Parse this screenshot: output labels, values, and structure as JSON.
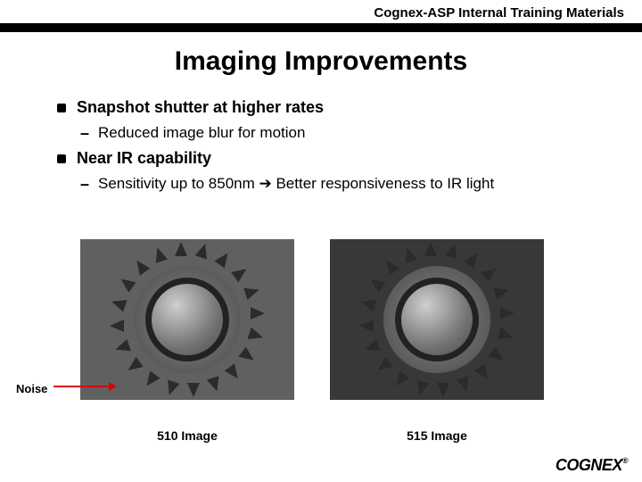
{
  "header": {
    "text": "Cognex-ASP Internal Training Materials"
  },
  "title": "Imaging Improvements",
  "bullets": [
    {
      "text": "Snapshot shutter at higher rates",
      "sub": [
        {
          "text": "Reduced image blur for motion"
        }
      ]
    },
    {
      "text": "Near IR capability",
      "sub": [
        {
          "text_html": "Sensitivity up to 850nm → Better responsiveness to IR light",
          "prefix": "Sensitivity up to 850nm ",
          "arrow": "➔",
          "suffix": " Better responsiveness to IR light"
        }
      ]
    }
  ],
  "noise_label": "Noise",
  "captions": {
    "left": "510 Image",
    "right": "515 Image"
  },
  "logo": "COGNEX",
  "gear": {
    "teeth_count": 20,
    "colors": {
      "bg_left": "#606060",
      "bg_right": "#383838",
      "tooth": "#2b2b2b",
      "body_grad_inner": "#8a8a8a",
      "body_grad_outer": "#474747",
      "ring": "#222222",
      "center_grad": [
        "#cfcfcf",
        "#757575",
        "#4a4a4a"
      ]
    }
  },
  "arrow_color": "#d00000"
}
